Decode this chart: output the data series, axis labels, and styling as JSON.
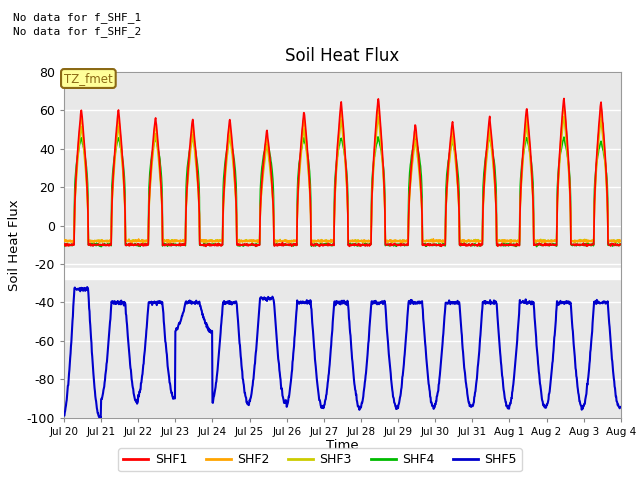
{
  "title": "Soil Heat Flux",
  "ylabel": "Soil Heat Flux",
  "xlabel": "Time",
  "xlabels": [
    "Jul 20",
    "Jul 21",
    "Jul 22",
    "Jul 23",
    "Jul 24",
    "Jul 25",
    "Jul 26",
    "Jul 27",
    "Jul 28",
    "Jul 29",
    "Jul 30",
    "Jul 31",
    "Aug 1",
    "Aug 2",
    "Aug 3",
    "Aug 4"
  ],
  "ylim": [
    -100,
    80
  ],
  "yticks": [
    -100,
    -80,
    -60,
    -40,
    -20,
    0,
    20,
    40,
    60,
    80
  ],
  "shf1_color": "#FF0000",
  "shf2_color": "#FFA500",
  "shf3_color": "#CCCC00",
  "shf4_color": "#00BB00",
  "shf5_color": "#0000CC",
  "bg_upper_color": "#E8E8E8",
  "bg_lower_color": "#D8D8D8",
  "annotation_text1": "No data for f_SHF_1",
  "annotation_text2": "No data for f_SHF_2",
  "tz_label": "TZ_fmet",
  "legend_labels": [
    "SHF1",
    "SHF2",
    "SHF3",
    "SHF4",
    "SHF5"
  ]
}
